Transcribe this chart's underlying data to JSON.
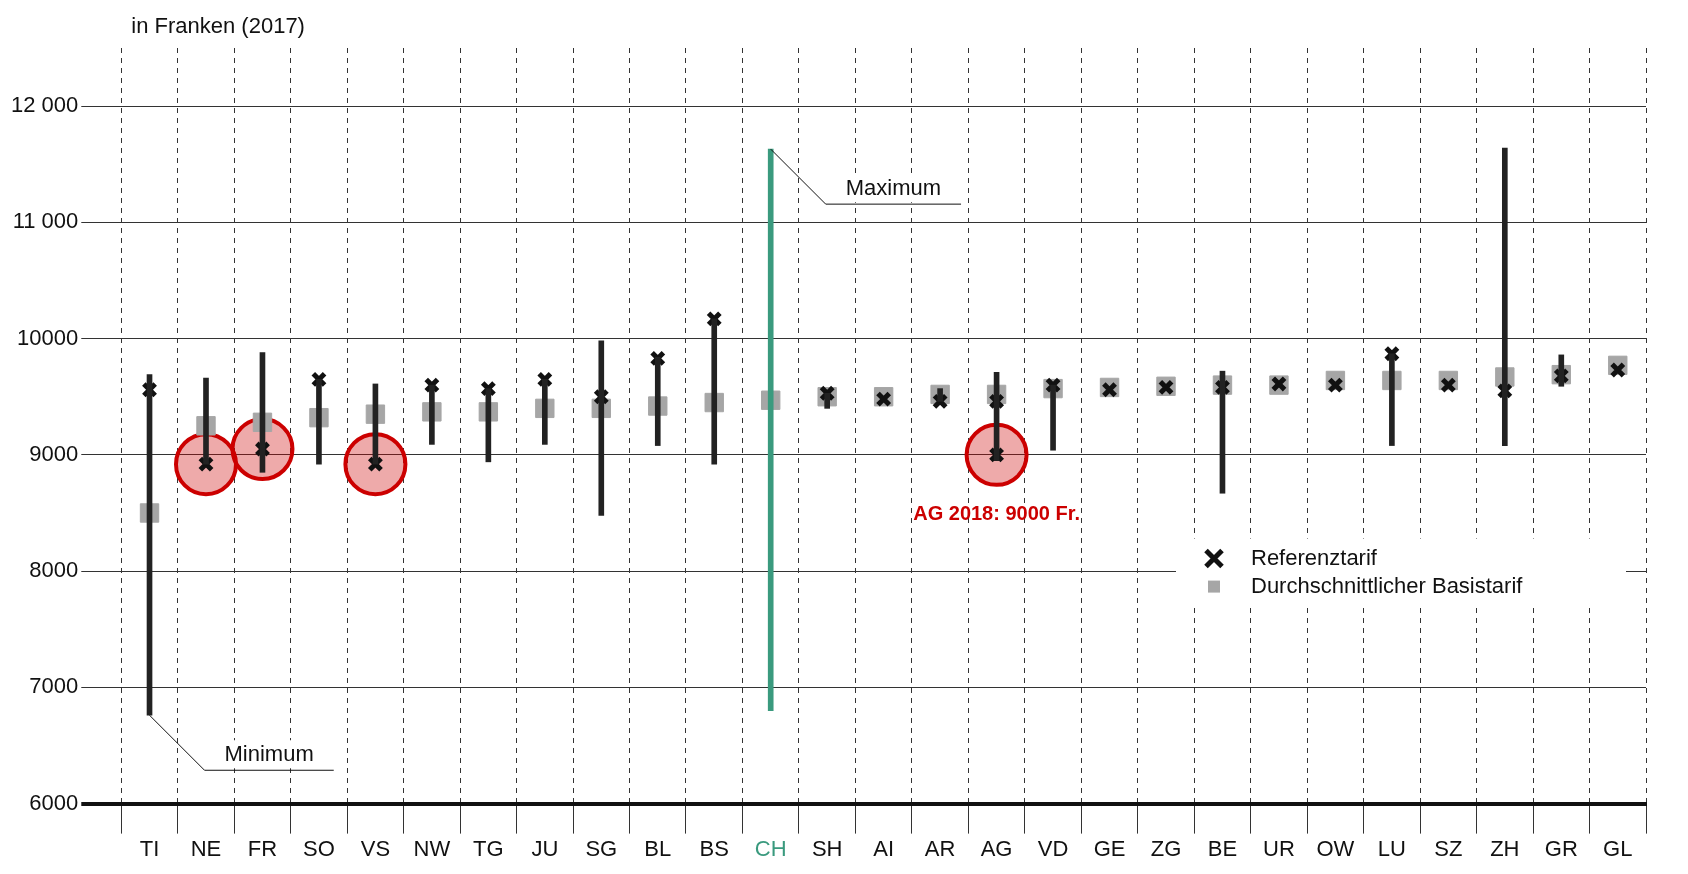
{
  "chart_data": {
    "type": "bar",
    "ylabel": "in Franken (2017)",
    "categories": [
      "TI",
      "NE",
      "FR",
      "SO",
      "VS",
      "NW",
      "TG",
      "JU",
      "SG",
      "BL",
      "BS",
      "CH",
      "SH",
      "AI",
      "AR",
      "AG",
      "VD",
      "GE",
      "ZG",
      "BE",
      "UR",
      "OW",
      "LU",
      "SZ",
      "ZH",
      "GR",
      "GL"
    ],
    "series": [
      {
        "colors": [
          "#222222",
          "#222222",
          "#222222",
          "#222222",
          "#222222",
          "#222222",
          "#222222",
          "#222222",
          "#222222",
          "#222222",
          "#222222",
          "#3a9a7e",
          "#222222",
          "#222222",
          "#222222",
          "#222222",
          "#222222",
          "#222222",
          "#222222",
          "#222222",
          "#222222",
          "#222222",
          "#222222",
          "#222222",
          "#222222",
          "#222222",
          "#222222"
        ],
        "base": [
          6760,
          8920,
          8850,
          8920,
          8920,
          9090,
          8940,
          9090,
          8480,
          9080,
          8920,
          6800,
          9400,
          null,
          9460,
          8950,
          9040,
          null,
          null,
          8670,
          null,
          null,
          9080,
          null,
          9080,
          9590,
          null
        ],
        "values": [
          2930,
          740,
          1030,
          730,
          690,
          510,
          630,
          560,
          1500,
          760,
          1250,
          4830,
          130,
          null,
          110,
          760,
          560,
          null,
          null,
          1050,
          null,
          null,
          790,
          null,
          2560,
          270,
          null
        ]
      },
      {
        "type": "scatter",
        "name": "Durchschnittlicher Basistarif",
        "color": "#a6a6a6",
        "marker": "square",
        "values": [
          8500,
          9250,
          9280,
          9320,
          9350,
          9370,
          9370,
          9400,
          9400,
          9420,
          9450,
          9470,
          9500,
          9500,
          9520,
          9520,
          9570,
          9580,
          9590,
          9600,
          9600,
          9640,
          9640,
          9640,
          9670,
          9690,
          9770
        ]
      },
      {
        "type": "scatter",
        "name": "Referenztarif",
        "color": "#111111",
        "marker": "cross",
        "values": [
          9560,
          8920,
          9050,
          9650,
          8920,
          9600,
          9570,
          9650,
          9500,
          9830,
          10170,
          null,
          9530,
          9480,
          9460,
          9460,
          9600,
          9560,
          9580,
          9580,
          9610,
          9600,
          9870,
          9600,
          9550,
          9680,
          9730
        ]
      },
      {
        "type": "scatter",
        "color": "#111111",
        "marker": "cross",
        "values": [
          null,
          null,
          null,
          null,
          null,
          null,
          null,
          null,
          null,
          null,
          null,
          null,
          null,
          null,
          null,
          9000,
          null,
          null,
          null,
          null,
          null,
          null,
          null,
          null,
          null,
          null,
          null
        ]
      },
      {
        "type": "scatter",
        "color": "#cc0000",
        "marker": "circle",
        "values": [
          null,
          8920,
          9050,
          null,
          8920,
          null,
          null,
          null,
          null,
          null,
          null,
          null,
          null,
          null,
          null,
          9000,
          null,
          null,
          null,
          null,
          null,
          null,
          null,
          null,
          null,
          null,
          null
        ]
      }
    ],
    "ylim": [
      6000,
      12500
    ],
    "yticks": [
      6000,
      7000,
      8000,
      9000,
      10000,
      {
        "value": 11000,
        "label": "11 000"
      },
      {
        "value": 12000,
        "label": "12 000"
      }
    ],
    "grid": true,
    "legend": "bottom right",
    "annotations": [
      {
        "text": "Minimum",
        "x": "TI",
        "y": 6760
      },
      {
        "text": "Maximum",
        "x": "CH",
        "y": 11630
      },
      {
        "text": "AG 2018: 9000 Fr.",
        "x": "AG",
        "y": 9000
      }
    ]
  }
}
